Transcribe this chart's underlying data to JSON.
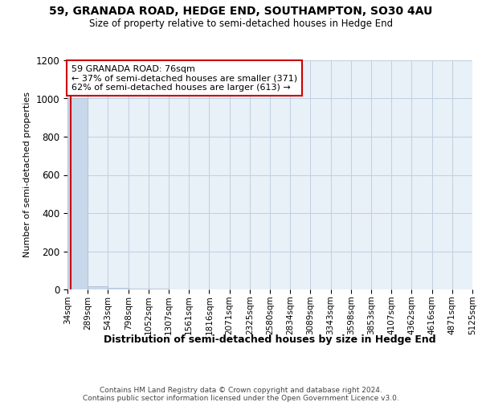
{
  "title1": "59, GRANADA ROAD, HEDGE END, SOUTHAMPTON, SO30 4AU",
  "title2": "Size of property relative to semi-detached houses in Hedge End",
  "xlabel": "Distribution of semi-detached houses by size in Hedge End",
  "ylabel": "Number of semi-detached properties",
  "footer1": "Contains HM Land Registry data © Crown copyright and database right 2024.",
  "footer2": "Contains public sector information licensed under the Open Government Licence v3.0.",
  "annotation_title": "59 GRANADA ROAD: 76sqm",
  "annotation_line1": "← 37% of semi-detached houses are smaller (371)",
  "annotation_line2": "62% of semi-detached houses are larger (613) →",
  "property_size": 76,
  "bar_edges": [
    34,
    289,
    543,
    798,
    1052,
    1307,
    1561,
    1816,
    2071,
    2325,
    2580,
    2834,
    3089,
    3343,
    3598,
    3853,
    4107,
    4362,
    4616,
    4871,
    5125
  ],
  "bar_heights": [
    1000,
    18,
    8,
    5,
    3,
    2,
    2,
    2,
    1,
    1,
    1,
    1,
    1,
    1,
    1,
    1,
    0,
    0,
    0,
    0
  ],
  "bar_color": "#c8d8ea",
  "bar_edgecolor": "#a8bdd0",
  "red_line_color": "#cc0000",
  "ylim": [
    0,
    1200
  ],
  "yticks": [
    0,
    200,
    400,
    600,
    800,
    1000,
    1200
  ],
  "background_color": "#ffffff",
  "plot_background": "#e8f0f8",
  "annotation_box_edgecolor": "#cc0000",
  "grid_color": "#c0cfe0"
}
